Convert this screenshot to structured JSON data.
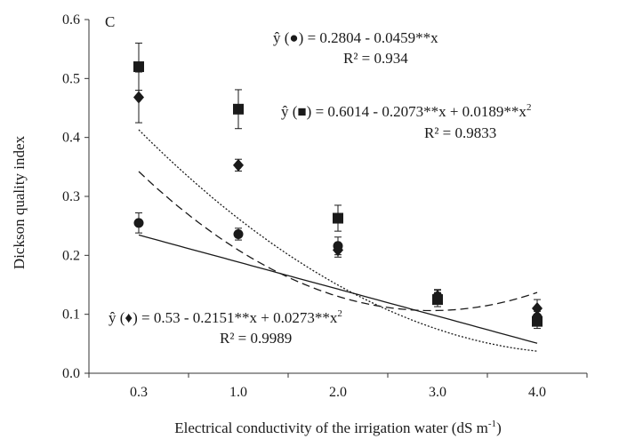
{
  "chart_data": {
    "type": "scatter",
    "panel_label": "C",
    "xlabel": "Electrical conductivity of the irrigation water (dS m",
    "xlabel_sup": "-1",
    "xlabel_tail": ")",
    "ylabel": "Dickson quality index",
    "categories": [
      "0.3",
      "1.0",
      "2.0",
      "3.0",
      "4.0"
    ],
    "ylim": [
      0.0,
      0.6
    ],
    "yticks": [
      "0.0",
      "0.1",
      "0.2",
      "0.3",
      "0.4",
      "0.5",
      "0.6"
    ],
    "grid": false,
    "series": [
      {
        "marker": "square",
        "values": [
          0.52,
          0.448,
          0.263,
          0.125,
          0.088
        ],
        "errors": [
          0.04,
          0.033,
          0.022,
          0.012,
          0.012
        ],
        "fit": {
          "line": "dotted",
          "a": 0.6014,
          "b": -0.2073,
          "c": 0.0189
        },
        "equation": "ŷ (■) = 0.6014 - 0.2073**x + 0.0189**x",
        "equation_sup": "2",
        "r2": "R² = 0.9833"
      },
      {
        "marker": "diamond",
        "values": [
          0.468,
          0.353,
          0.209,
          0.131,
          0.11
        ],
        "errors": [
          0.043,
          0.01,
          0.012,
          0.01,
          0.015
        ],
        "fit": {
          "line": "dashed",
          "a": 0.53,
          "b": -0.2151,
          "c": 0.0273
        },
        "equation": "ŷ (♦) = 0.53 - 0.2151**x + 0.0273**x",
        "equation_sup": "2",
        "r2": "R² = 0.9989"
      },
      {
        "marker": "circle",
        "values": [
          0.255,
          0.236,
          0.216,
          0.13,
          0.095
        ],
        "errors": [
          0.017,
          0.01,
          0.015,
          0.012,
          0.01
        ],
        "fit": {
          "line": "solid",
          "a": 0.2804,
          "b": -0.0459,
          "c": 0
        },
        "equation": "ŷ (●) = 0.2804 - 0.0459**x",
        "equation_sup": "",
        "r2": "R² = 0.934"
      }
    ]
  }
}
